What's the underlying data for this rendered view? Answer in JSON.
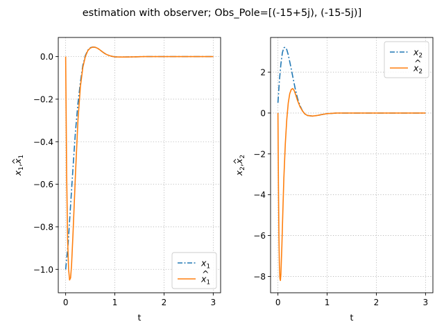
{
  "figure": {
    "suptitle": "estimation with observer; Obs_Pole=[(-15+5j), (-15-5j)]"
  },
  "chart_data": [
    {
      "type": "line",
      "xlabel": "t",
      "ylabel_main": "x",
      "ylabel_sub": "1",
      "ylabel_sep": ",",
      "xlim": [
        -0.15,
        3.15
      ],
      "ylim": [
        -1.11,
        0.09
      ],
      "xticks": [
        0,
        1,
        2,
        3
      ],
      "xtick_labels": [
        "0",
        "1",
        "2",
        "3"
      ],
      "yticks": [
        0.0,
        -0.2,
        -0.4,
        -0.6,
        -0.8,
        -1.0
      ],
      "ytick_labels": [
        "0.0",
        "−0.2",
        "−0.4",
        "−0.6",
        "−0.8",
        "−1.0"
      ],
      "grid": true,
      "legend_position": "lower-right",
      "series": [
        {
          "name": "x",
          "name_sub": "1",
          "hat": false,
          "color": "#1f77b4",
          "style": "dashdot",
          "x": [
            0,
            0.05,
            0.1,
            0.15,
            0.2,
            0.25,
            0.3,
            0.35,
            0.4,
            0.45,
            0.5,
            0.55,
            0.6,
            0.65,
            0.7,
            0.75,
            0.8,
            0.85,
            0.9,
            0.95,
            1.0,
            1.1,
            1.2,
            1.4,
            1.6,
            2.0,
            2.5,
            3.0
          ],
          "y": [
            -1.0,
            -0.88,
            -0.7,
            -0.52,
            -0.35,
            -0.22,
            -0.12,
            -0.04,
            0.005,
            0.03,
            0.042,
            0.045,
            0.044,
            0.039,
            0.031,
            0.022,
            0.014,
            0.008,
            0.004,
            0.001,
            -0.001,
            -0.002,
            -0.002,
            -0.001,
            0.0,
            0.0,
            0.0,
            0.0
          ]
        },
        {
          "name": "x",
          "name_sub": "1",
          "hat": true,
          "color": "#ff7f0e",
          "style": "solid",
          "x": [
            0,
            0.02,
            0.04,
            0.06,
            0.08,
            0.1,
            0.12,
            0.15,
            0.2,
            0.25,
            0.3,
            0.35,
            0.4,
            0.45,
            0.5,
            0.55,
            0.6,
            0.65,
            0.7,
            0.75,
            0.8,
            0.85,
            0.9,
            0.95,
            1.0,
            1.1,
            1.2,
            1.4,
            1.6,
            2.0,
            2.5,
            3.0
          ],
          "y": [
            0.0,
            -0.55,
            -0.86,
            -1.0,
            -1.05,
            -1.04,
            -0.98,
            -0.83,
            -0.55,
            -0.3,
            -0.14,
            -0.05,
            0.0,
            0.028,
            0.04,
            0.045,
            0.044,
            0.039,
            0.031,
            0.022,
            0.014,
            0.008,
            0.004,
            0.001,
            -0.001,
            -0.002,
            -0.002,
            -0.001,
            0.0,
            0.0,
            0.0,
            0.0
          ]
        }
      ]
    },
    {
      "type": "line",
      "xlabel": "t",
      "ylabel_main": "x",
      "ylabel_sub": "2",
      "ylabel_sep": ",",
      "xlim": [
        -0.15,
        3.15
      ],
      "ylim": [
        -8.8,
        3.7
      ],
      "xticks": [
        0,
        1,
        2,
        3
      ],
      "xtick_labels": [
        "0",
        "1",
        "2",
        "3"
      ],
      "yticks": [
        2,
        0,
        -2,
        -4,
        -6,
        -8
      ],
      "ytick_labels": [
        "2",
        "0",
        "−2",
        "−4",
        "−6",
        "−8"
      ],
      "grid": true,
      "legend_position": "upper-right",
      "series": [
        {
          "name": "x",
          "name_sub": "2",
          "hat": false,
          "color": "#1f77b4",
          "style": "dashdot",
          "x": [
            0,
            0.03,
            0.06,
            0.09,
            0.12,
            0.15,
            0.18,
            0.21,
            0.25,
            0.3,
            0.35,
            0.4,
            0.45,
            0.5,
            0.55,
            0.6,
            0.7,
            0.8,
            0.9,
            1.0,
            1.2,
            1.5,
            2.0,
            2.5,
            3.0
          ],
          "y": [
            0.5,
            1.6,
            2.4,
            2.95,
            3.2,
            3.22,
            3.1,
            2.85,
            2.4,
            1.8,
            1.2,
            0.7,
            0.35,
            0.1,
            -0.05,
            -0.12,
            -0.15,
            -0.12,
            -0.07,
            -0.03,
            0.0,
            0.0,
            0.0,
            0.0,
            0.0
          ]
        },
        {
          "name": "x",
          "name_sub": "2",
          "hat": true,
          "color": "#ff7f0e",
          "style": "solid",
          "x": [
            0,
            0.01,
            0.02,
            0.03,
            0.04,
            0.05,
            0.06,
            0.08,
            0.1,
            0.12,
            0.15,
            0.18,
            0.21,
            0.24,
            0.27,
            0.3,
            0.33,
            0.36,
            0.4,
            0.45,
            0.5,
            0.55,
            0.6,
            0.7,
            0.8,
            0.9,
            1.0,
            1.2,
            1.5,
            2.0,
            2.5,
            3.0
          ],
          "y": [
            0.0,
            -3.5,
            -6.0,
            -7.5,
            -8.1,
            -8.2,
            -7.9,
            -6.5,
            -4.8,
            -3.2,
            -1.5,
            -0.3,
            0.5,
            0.95,
            1.15,
            1.2,
            1.1,
            0.9,
            0.6,
            0.3,
            0.1,
            -0.05,
            -0.12,
            -0.15,
            -0.12,
            -0.07,
            -0.03,
            0.0,
            0.0,
            0.0,
            0.0,
            0.0
          ]
        }
      ]
    }
  ]
}
